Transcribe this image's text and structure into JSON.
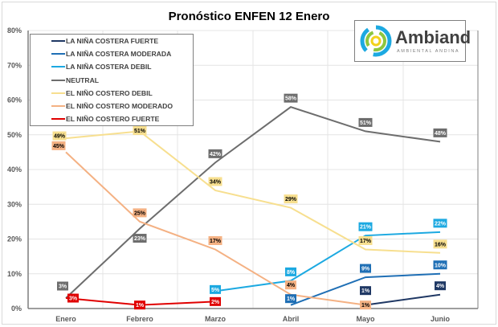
{
  "chart_data": {
    "type": "line",
    "title": "Pronóstico ENFEN 12 Enero",
    "categories": [
      "Enero",
      "Febrero",
      "Marzo",
      "Abril",
      "Mayo",
      "Junio"
    ],
    "ylim": [
      0,
      80
    ],
    "yticks": [
      "0%",
      "10%",
      "20%",
      "30%",
      "40%",
      "50%",
      "60%",
      "70%",
      "80%"
    ],
    "grid": true,
    "legend_placement": "top-left",
    "series": [
      {
        "name": "LA NIÑA COSTERA FUERTE",
        "color": "#1f3864",
        "values": [
          null,
          null,
          null,
          null,
          1,
          4
        ]
      },
      {
        "name": "LA NIÑA COSTERA MODERADA",
        "color": "#1f6fb5",
        "values": [
          null,
          null,
          null,
          1,
          9,
          10
        ]
      },
      {
        "name": "LA NIÑA COSTERA DEBIL",
        "color": "#1ca9e1",
        "values": [
          null,
          null,
          5,
          8,
          21,
          22
        ]
      },
      {
        "name": "NEUTRAL",
        "color": "#6d6d6d",
        "values": [
          3,
          23,
          42,
          58,
          51,
          48
        ]
      },
      {
        "name": "EL NIÑO COSTERO DEBIL",
        "color": "#f7df8f",
        "values": [
          49,
          51,
          34,
          29,
          17,
          16
        ]
      },
      {
        "name": "EL NIÑO COSTERO MODERADO",
        "color": "#f4b183",
        "values": [
          45,
          25,
          17,
          4,
          1,
          null
        ]
      },
      {
        "name": "EL NIÑO COSTERO FUERTE",
        "color": "#e00000",
        "values": [
          3,
          1,
          2,
          null,
          null,
          null
        ]
      }
    ]
  },
  "logo": {
    "name": "Ambiand",
    "subtitle": "AMBIENTAL ANDINA"
  }
}
